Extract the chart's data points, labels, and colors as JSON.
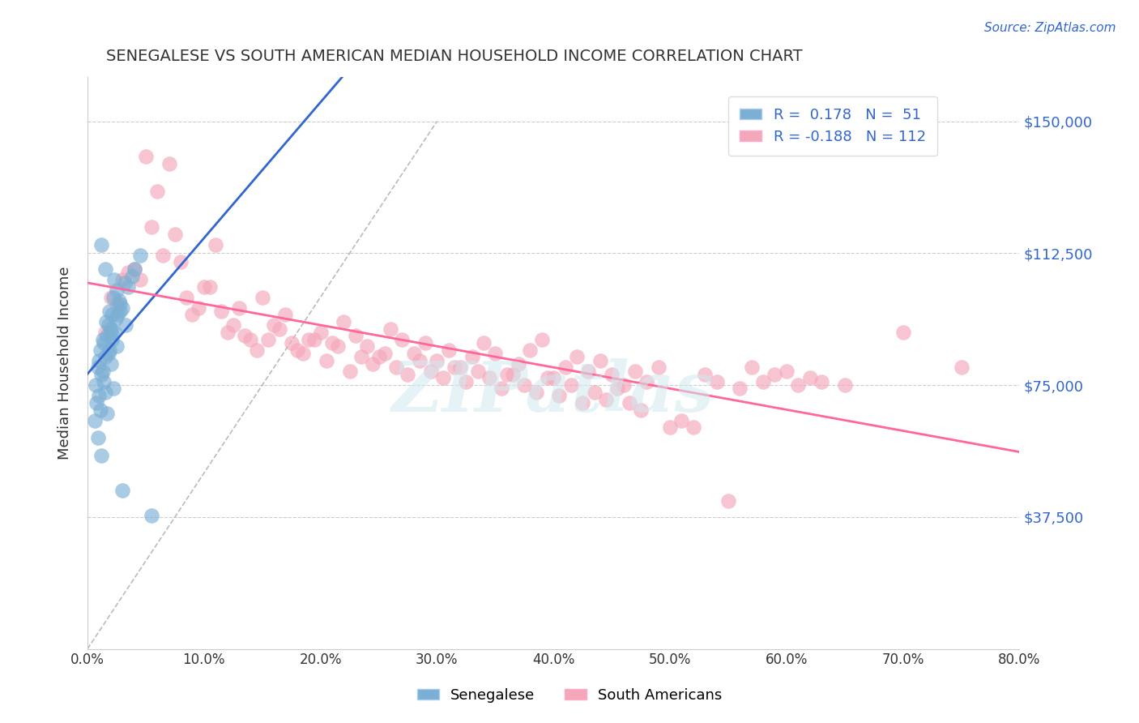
{
  "title": "SENEGALESE VS SOUTH AMERICAN MEDIAN HOUSEHOLD INCOME CORRELATION CHART",
  "source": "Source: ZipAtlas.com",
  "xlabel_ticks": [
    "0.0%",
    "10.0%",
    "20.0%",
    "30.0%",
    "40.0%",
    "50.0%",
    "60.0%",
    "70.0%",
    "80.0%"
  ],
  "xlabel_vals": [
    0,
    10,
    20,
    30,
    40,
    50,
    60,
    70,
    80
  ],
  "ylabel": "Median Household Income",
  "ytick_vals": [
    0,
    37500,
    75000,
    112500,
    150000
  ],
  "ytick_labels": [
    "",
    "$37,500",
    "$75,000",
    "$112,500",
    "$150,000"
  ],
  "xmin": 0,
  "xmax": 80,
  "ymin": 0,
  "ymax": 162500,
  "legend_r1": "R =  0.178   N =  51",
  "legend_r2": "R = -0.188   N = 112",
  "blue_color": "#7BAFD4",
  "pink_color": "#F4A7B9",
  "blue_line_color": "#3366CC",
  "pink_line_color": "#FF6699",
  "watermark": "ZIPatlas",
  "legend_label1": "Senegalese",
  "legend_label2": "South Americans",
  "senegalese_x": [
    1.2,
    1.5,
    2.1,
    2.3,
    2.8,
    0.9,
    1.1,
    1.3,
    1.8,
    2.0,
    0.7,
    1.0,
    1.4,
    1.6,
    1.9,
    2.2,
    2.5,
    3.0,
    3.5,
    4.0,
    0.8,
    1.2,
    1.5,
    1.7,
    2.0,
    2.4,
    2.7,
    3.2,
    0.6,
    1.0,
    1.3,
    1.8,
    2.1,
    2.6,
    3.8,
    1.1,
    1.4,
    1.9,
    2.3,
    2.8,
    0.9,
    1.5,
    2.0,
    2.5,
    3.3,
    4.5,
    1.2,
    1.7,
    2.2,
    3.0,
    5.5
  ],
  "senegalese_y": [
    115000,
    108000,
    95000,
    105000,
    98000,
    80000,
    85000,
    88000,
    92000,
    90000,
    75000,
    82000,
    87000,
    93000,
    96000,
    100000,
    102000,
    97000,
    103000,
    108000,
    70000,
    78000,
    83000,
    89000,
    91000,
    94000,
    99000,
    104000,
    65000,
    72000,
    79000,
    84000,
    88000,
    95000,
    106000,
    68000,
    76000,
    85000,
    90000,
    96000,
    60000,
    73000,
    81000,
    86000,
    92000,
    112000,
    55000,
    67000,
    74000,
    45000,
    38000
  ],
  "south_american_x": [
    2.5,
    3.0,
    4.0,
    5.0,
    6.0,
    7.0,
    8.0,
    9.0,
    10.0,
    11.0,
    12.0,
    13.0,
    14.0,
    15.0,
    16.0,
    17.0,
    18.0,
    19.0,
    20.0,
    21.0,
    22.0,
    23.0,
    24.0,
    25.0,
    26.0,
    27.0,
    28.0,
    29.0,
    30.0,
    31.0,
    32.0,
    33.0,
    34.0,
    35.0,
    36.0,
    37.0,
    38.0,
    39.0,
    40.0,
    41.0,
    42.0,
    43.0,
    44.0,
    45.0,
    46.0,
    47.0,
    48.0,
    49.0,
    50.0,
    51.0,
    52.0,
    53.0,
    54.0,
    55.0,
    56.0,
    57.0,
    58.0,
    59.0,
    60.0,
    61.0,
    62.0,
    63.0,
    65.0,
    70.0,
    75.0,
    1.5,
    2.0,
    3.5,
    4.5,
    5.5,
    6.5,
    7.5,
    8.5,
    9.5,
    10.5,
    11.5,
    12.5,
    13.5,
    14.5,
    15.5,
    16.5,
    17.5,
    18.5,
    19.5,
    20.5,
    21.5,
    22.5,
    23.5,
    24.5,
    25.5,
    26.5,
    27.5,
    28.5,
    29.5,
    30.5,
    31.5,
    32.5,
    33.5,
    34.5,
    35.5,
    36.5,
    37.5,
    38.5,
    39.5,
    40.5,
    41.5,
    42.5,
    43.5,
    44.5,
    45.5,
    46.5,
    47.5
  ],
  "south_american_y": [
    98000,
    105000,
    108000,
    140000,
    130000,
    138000,
    110000,
    95000,
    103000,
    115000,
    90000,
    97000,
    88000,
    100000,
    92000,
    95000,
    85000,
    88000,
    90000,
    87000,
    93000,
    89000,
    86000,
    83000,
    91000,
    88000,
    84000,
    87000,
    82000,
    85000,
    80000,
    83000,
    87000,
    84000,
    78000,
    81000,
    85000,
    88000,
    77000,
    80000,
    83000,
    79000,
    82000,
    78000,
    75000,
    79000,
    76000,
    80000,
    63000,
    65000,
    63000,
    78000,
    76000,
    42000,
    74000,
    80000,
    76000,
    78000,
    79000,
    75000,
    77000,
    76000,
    75000,
    90000,
    80000,
    90000,
    100000,
    107000,
    105000,
    120000,
    112000,
    118000,
    100000,
    97000,
    103000,
    96000,
    92000,
    89000,
    85000,
    88000,
    91000,
    87000,
    84000,
    88000,
    82000,
    86000,
    79000,
    83000,
    81000,
    84000,
    80000,
    78000,
    82000,
    79000,
    77000,
    80000,
    76000,
    79000,
    77000,
    74000,
    78000,
    75000,
    73000,
    77000,
    72000,
    75000,
    70000,
    73000,
    71000,
    74000,
    70000,
    68000
  ]
}
